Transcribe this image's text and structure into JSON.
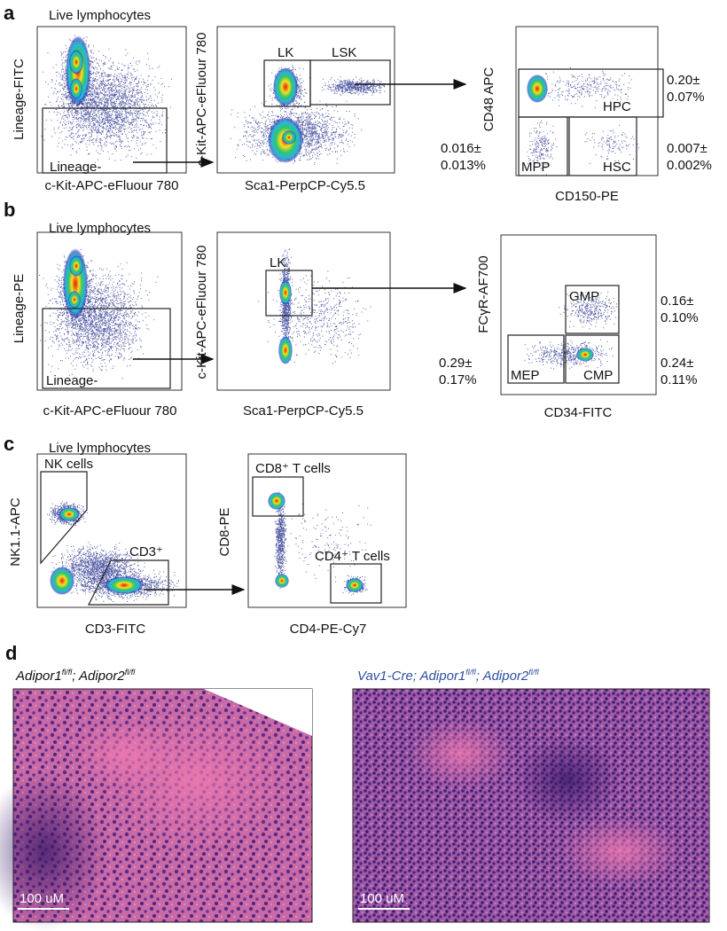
{
  "panels": [
    {
      "label": "a",
      "plots": [
        {
          "title": "Live lymphocytes",
          "x_label": "c-Kit-APC-eFluour 780",
          "y_label": "Lineage-FITC",
          "gates": [
            "Lineage-"
          ]
        },
        {
          "x_label": "Sca1-PerpCP-Cy5.5",
          "y_label": "c-Kit-APC-eFluour 780",
          "gates": [
            "LK",
            "LSK"
          ]
        },
        {
          "x_label": "CD150-PE",
          "y_label": "CD48 APC",
          "gates": [
            "HPC",
            "MPP",
            "HSC"
          ],
          "stats": [
            {
              "top": "0.20±",
              "bottom": "0.07%"
            },
            {
              "top": "0.016±",
              "bottom": "0.013%"
            },
            {
              "top": "0.007±",
              "bottom": "0.002%"
            }
          ]
        }
      ]
    },
    {
      "label": "b",
      "plots": [
        {
          "title": "Live lymphocytes",
          "x_label": "c-Kit-APC-eFluour 780",
          "y_label": "Lineage-PE",
          "gates": [
            "Lineage-"
          ]
        },
        {
          "x_label": "Sca1-PerpCP-Cy5.5",
          "y_label": "c-Kit-APC-eFluour 780",
          "gates": [
            "LK"
          ]
        },
        {
          "x_label": "CD34-FITC",
          "y_label": "FCγR-AF700",
          "gates": [
            "GMP",
            "MEP",
            "CMP"
          ],
          "stats": [
            {
              "top": "0.16±",
              "bottom": "0.10%"
            },
            {
              "top": "0.29±",
              "bottom": "0.17%"
            },
            {
              "top": "0.24±",
              "bottom": "0.11%"
            }
          ]
        }
      ]
    },
    {
      "label": "c",
      "plots": [
        {
          "title": "Live lymphocytes",
          "x_label": "CD3-FITC",
          "y_label": "NK1.1-APC",
          "gates": [
            "NK cells",
            "CD3⁺"
          ]
        },
        {
          "x_label": "CD4-PE-Cy7",
          "y_label": "CD8-PE",
          "gates": [
            "CD8⁺ T cells",
            "CD4⁺ T cells"
          ]
        }
      ]
    },
    {
      "label": "d",
      "images": [
        {
          "title_parts": [
            "Adipor1",
            "fl/fl",
            "; Adipor2",
            "fl/fl"
          ],
          "scale_bar": "100 uM"
        },
        {
          "title_parts": [
            "Vav1-Cre; Adipor1",
            "fl/fl",
            "; Adipor2",
            "fl/fl"
          ],
          "scale_bar": "100 uM"
        }
      ]
    }
  ]
}
